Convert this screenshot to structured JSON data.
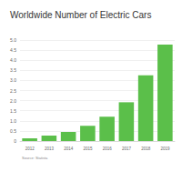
{
  "chart_data": {
    "type": "bar",
    "title": "Worldwide Number of Electric Cars",
    "categories": [
      "2012",
      "2013",
      "2014",
      "2015",
      "2016",
      "2017",
      "2018",
      "2019"
    ],
    "values": [
      0.13,
      0.27,
      0.45,
      0.76,
      1.2,
      1.92,
      3.26,
      4.78
    ],
    "color": "#5bbf4a",
    "ylim": [
      0,
      5
    ],
    "yticks": [
      0,
      0.5,
      {
        "value": 1,
        "label": "1.0"
      },
      1.5,
      {
        "value": 2,
        "label": "2.0"
      },
      2.5,
      {
        "value": 3,
        "label": "3.0"
      },
      3.5,
      {
        "value": 4,
        "label": "4.0"
      },
      4.5,
      {
        "value": 5,
        "label": "5.0"
      }
    ],
    "grid": true,
    "annotations": [
      "Source: Statista"
    ]
  }
}
